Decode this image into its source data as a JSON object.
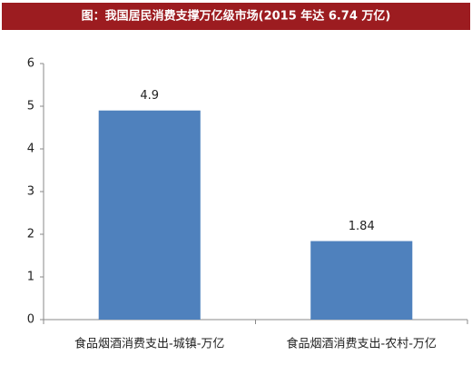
{
  "chart_data": {
    "type": "bar",
    "title": "图：我国居民消费支撑万亿级市场(2015 年达 6.74 万亿)",
    "categories": [
      "食品烟酒消费支出-城镇-万亿",
      "食品烟酒消费支出-农村-万亿"
    ],
    "values": [
      4.9,
      1.84
    ],
    "color": "#4f81bd",
    "ylim": [
      0,
      6
    ],
    "yticks": [
      0,
      1,
      2,
      3,
      4,
      5,
      6
    ],
    "grid": false
  }
}
